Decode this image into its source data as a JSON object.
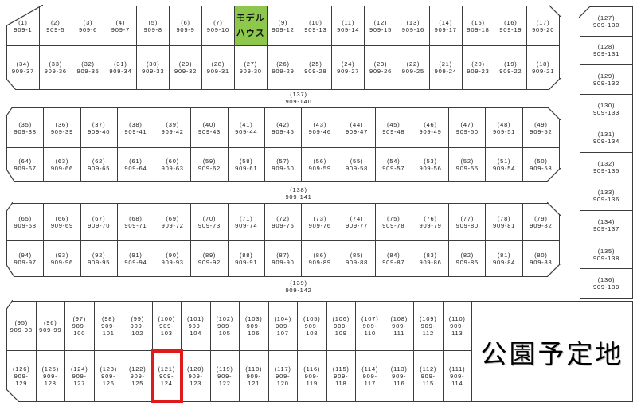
{
  "colors": {
    "line": "#3c3c3c",
    "text": "#1a1a1a",
    "model_house_bg": "#8dc74b",
    "highlight_red": "#e01a1a"
  },
  "park": {
    "label": "公園予定地"
  },
  "model_house": {
    "lines": [
      "モデル",
      "ハウス"
    ]
  },
  "highlighted_plot": "(121) 909-124",
  "roads": [
    {
      "lines": [
        "(137)",
        "909-140"
      ]
    },
    {
      "lines": [
        "(138)",
        "909-141"
      ]
    },
    {
      "lines": [
        "(139)",
        "909-142"
      ]
    }
  ],
  "blocks": {
    "top": {
      "row1": [
        {
          "lines": [
            "(1)",
            "909-1"
          ]
        },
        {
          "lines": [
            "(2)",
            "909-5"
          ]
        },
        {
          "lines": [
            "(3)",
            "909-6"
          ]
        },
        {
          "lines": [
            "(4)",
            "909-7"
          ]
        },
        {
          "lines": [
            "(5)",
            "909-8"
          ]
        },
        {
          "lines": [
            "(6)",
            "909-9"
          ]
        },
        {
          "lines": [
            "(7)",
            "909-10"
          ]
        },
        {
          "model_house": true,
          "lines": [
            "モデル",
            "ハウス"
          ]
        },
        {
          "lines": [
            "(9)",
            "909-12"
          ]
        },
        {
          "lines": [
            "(10)",
            "909-13"
          ]
        },
        {
          "lines": [
            "(11)",
            "909-14"
          ]
        },
        {
          "lines": [
            "(12)",
            "909-15"
          ]
        },
        {
          "lines": [
            "(13)",
            "909-16"
          ]
        },
        {
          "lines": [
            "(14)",
            "909-17"
          ]
        },
        {
          "lines": [
            "(15)",
            "909-18"
          ]
        },
        {
          "lines": [
            "(16)",
            "909-19"
          ]
        },
        {
          "lines": [
            "(17)",
            "909-20"
          ]
        }
      ],
      "row2": [
        {
          "lines": [
            "(34)",
            "909-37"
          ]
        },
        {
          "lines": [
            "(33)",
            "909-36"
          ]
        },
        {
          "lines": [
            "(32)",
            "909-35"
          ]
        },
        {
          "lines": [
            "(31)",
            "909-34"
          ]
        },
        {
          "lines": [
            "(30)",
            "909-33"
          ]
        },
        {
          "lines": [
            "(29)",
            "909-32"
          ]
        },
        {
          "lines": [
            "(28)",
            "909-31"
          ]
        },
        {
          "lines": [
            "(27)",
            "909-30"
          ]
        },
        {
          "lines": [
            "(26)",
            "909-29"
          ]
        },
        {
          "lines": [
            "(25)",
            "909-28"
          ]
        },
        {
          "lines": [
            "(24)",
            "909-27"
          ]
        },
        {
          "lines": [
            "(23)",
            "909-26"
          ]
        },
        {
          "lines": [
            "(22)",
            "909-25"
          ]
        },
        {
          "lines": [
            "(21)",
            "909-24"
          ]
        },
        {
          "lines": [
            "(20)",
            "909-23"
          ]
        },
        {
          "lines": [
            "(19)",
            "909-22"
          ]
        },
        {
          "lines": [
            "(18)",
            "909-21"
          ]
        }
      ]
    },
    "mid1": {
      "row1": [
        {
          "lines": [
            "(35)",
            "909-38"
          ]
        },
        {
          "lines": [
            "(36)",
            "909-39"
          ]
        },
        {
          "lines": [
            "(37)",
            "909-40"
          ]
        },
        {
          "lines": [
            "(38)",
            "909-41"
          ]
        },
        {
          "lines": [
            "(39)",
            "909-42"
          ]
        },
        {
          "lines": [
            "(40)",
            "909-43"
          ]
        },
        {
          "lines": [
            "(41)",
            "909-44"
          ]
        },
        {
          "lines": [
            "(42)",
            "909-45"
          ]
        },
        {
          "lines": [
            "(43)",
            "909-46"
          ]
        },
        {
          "lines": [
            "(44)",
            "909-47"
          ]
        },
        {
          "lines": [
            "(45)",
            "909-48"
          ]
        },
        {
          "lines": [
            "(46)",
            "909-49"
          ]
        },
        {
          "lines": [
            "(47)",
            "909-50"
          ]
        },
        {
          "lines": [
            "(48)",
            "909-51"
          ]
        },
        {
          "lines": [
            "(49)",
            "909-52"
          ]
        }
      ],
      "row2": [
        {
          "lines": [
            "(64)",
            "909-67"
          ]
        },
        {
          "lines": [
            "(63)",
            "909-66"
          ]
        },
        {
          "lines": [
            "(62)",
            "909-65"
          ]
        },
        {
          "lines": [
            "(61)",
            "909-64"
          ]
        },
        {
          "lines": [
            "(60)",
            "909-63"
          ]
        },
        {
          "lines": [
            "(59)",
            "909-62"
          ]
        },
        {
          "lines": [
            "(58)",
            "909-61"
          ]
        },
        {
          "lines": [
            "(57)",
            "909-60"
          ]
        },
        {
          "lines": [
            "(56)",
            "909-59"
          ]
        },
        {
          "lines": [
            "(55)",
            "909-58"
          ]
        },
        {
          "lines": [
            "(54)",
            "909-57"
          ]
        },
        {
          "lines": [
            "(53)",
            "909-56"
          ]
        },
        {
          "lines": [
            "(52)",
            "909-55"
          ]
        },
        {
          "lines": [
            "(51)",
            "909-54"
          ]
        },
        {
          "lines": [
            "(50)",
            "909-53"
          ]
        }
      ]
    },
    "mid2": {
      "row1": [
        {
          "lines": [
            "(65)",
            "909-68"
          ]
        },
        {
          "lines": [
            "(66)",
            "909-69"
          ]
        },
        {
          "lines": [
            "(67)",
            "909-70"
          ]
        },
        {
          "lines": [
            "(68)",
            "909-71"
          ]
        },
        {
          "lines": [
            "(69)",
            "909-72"
          ]
        },
        {
          "lines": [
            "(70)",
            "909-73"
          ]
        },
        {
          "lines": [
            "(71)",
            "909-74"
          ]
        },
        {
          "lines": [
            "(72)",
            "909-75"
          ]
        },
        {
          "lines": [
            "(73)",
            "909-76"
          ]
        },
        {
          "lines": [
            "(74)",
            "909-77"
          ]
        },
        {
          "lines": [
            "(75)",
            "909-78"
          ]
        },
        {
          "lines": [
            "(76)",
            "909-79"
          ]
        },
        {
          "lines": [
            "(77)",
            "909-80"
          ]
        },
        {
          "lines": [
            "(78)",
            "909-81"
          ]
        },
        {
          "lines": [
            "(79)",
            "909-82"
          ]
        }
      ],
      "row2": [
        {
          "lines": [
            "(94)",
            "909-97"
          ]
        },
        {
          "lines": [
            "(93)",
            "909-96"
          ]
        },
        {
          "lines": [
            "(92)",
            "909-95"
          ]
        },
        {
          "lines": [
            "(91)",
            "909-94"
          ]
        },
        {
          "lines": [
            "(90)",
            "909-93"
          ]
        },
        {
          "lines": [
            "(89)",
            "909-92"
          ]
        },
        {
          "lines": [
            "(88)",
            "909-91"
          ]
        },
        {
          "lines": [
            "(87)",
            "909-90"
          ]
        },
        {
          "lines": [
            "(86)",
            "909-89"
          ]
        },
        {
          "lines": [
            "(85)",
            "909-88"
          ]
        },
        {
          "lines": [
            "(84)",
            "909-87"
          ]
        },
        {
          "lines": [
            "(83)",
            "909-86"
          ]
        },
        {
          "lines": [
            "(82)",
            "909-85"
          ]
        },
        {
          "lines": [
            "(81)",
            "909-84"
          ]
        },
        {
          "lines": [
            "(80)",
            "909-83"
          ]
        }
      ]
    },
    "bottom": {
      "row1": [
        {
          "lines": [
            "(95)",
            "909-98"
          ]
        },
        {
          "lines": [
            "(96)",
            "909-99"
          ]
        },
        {
          "lines": [
            "(97)",
            "909-",
            "100"
          ]
        },
        {
          "lines": [
            "(98)",
            "909-",
            "101"
          ]
        },
        {
          "lines": [
            "(99)",
            "909-",
            "102"
          ]
        },
        {
          "lines": [
            "(100)",
            "909-",
            "103"
          ]
        },
        {
          "lines": [
            "(101)",
            "909-",
            "104"
          ]
        },
        {
          "lines": [
            "(102)",
            "909-",
            "105"
          ]
        },
        {
          "lines": [
            "(103)",
            "909-",
            "106"
          ]
        },
        {
          "lines": [
            "(104)",
            "909-",
            "107"
          ]
        },
        {
          "lines": [
            "(105)",
            "909-",
            "108"
          ]
        },
        {
          "lines": [
            "(106)",
            "909-",
            "109"
          ]
        },
        {
          "lines": [
            "(107)",
            "909-",
            "110"
          ]
        },
        {
          "lines": [
            "(108)",
            "909-",
            "111"
          ]
        },
        {
          "lines": [
            "(109)",
            "909-",
            "112"
          ]
        },
        {
          "lines": [
            "(110)",
            "909-",
            "113"
          ]
        }
      ],
      "row2": [
        {
          "lines": [
            "(126)",
            "909-",
            "129"
          ]
        },
        {
          "lines": [
            "(125)",
            "909-",
            "128"
          ]
        },
        {
          "lines": [
            "(124)",
            "909-",
            "127"
          ]
        },
        {
          "lines": [
            "(123)",
            "909-",
            "126"
          ]
        },
        {
          "lines": [
            "(122)",
            "909-",
            "125"
          ]
        },
        {
          "highlight": true,
          "lines": [
            "(121)",
            "909-",
            "124"
          ]
        },
        {
          "lines": [
            "(120)",
            "909-",
            "123"
          ]
        },
        {
          "lines": [
            "(119)",
            "909-",
            "122"
          ]
        },
        {
          "lines": [
            "(118)",
            "909-",
            "121"
          ]
        },
        {
          "lines": [
            "(117)",
            "909-",
            "120"
          ]
        },
        {
          "lines": [
            "(116)",
            "909-",
            "119"
          ]
        },
        {
          "lines": [
            "(115)",
            "909-",
            "118"
          ]
        },
        {
          "lines": [
            "(114)",
            "909-",
            "117"
          ]
        },
        {
          "lines": [
            "(113)",
            "909-",
            "116"
          ]
        },
        {
          "lines": [
            "(112)",
            "909-",
            "115"
          ]
        },
        {
          "lines": [
            "(111)",
            "909-",
            "114"
          ]
        }
      ]
    },
    "right_column": [
      {
        "lines": [
          "(127)",
          "909-130"
        ]
      },
      {
        "lines": [
          "(128)",
          "909-131"
        ]
      },
      {
        "lines": [
          "(129)",
          "909-132"
        ]
      },
      {
        "lines": [
          "(130)",
          "909-133"
        ]
      },
      {
        "lines": [
          "(131)",
          "909-134"
        ]
      },
      {
        "lines": [
          "(132)",
          "909-135"
        ]
      },
      {
        "lines": [
          "(133)",
          "909-136"
        ]
      },
      {
        "lines": [
          "(134)",
          "909-137"
        ]
      },
      {
        "lines": [
          "(135)",
          "909-138"
        ]
      },
      {
        "lines": [
          "(136)",
          "909-139"
        ]
      }
    ]
  }
}
